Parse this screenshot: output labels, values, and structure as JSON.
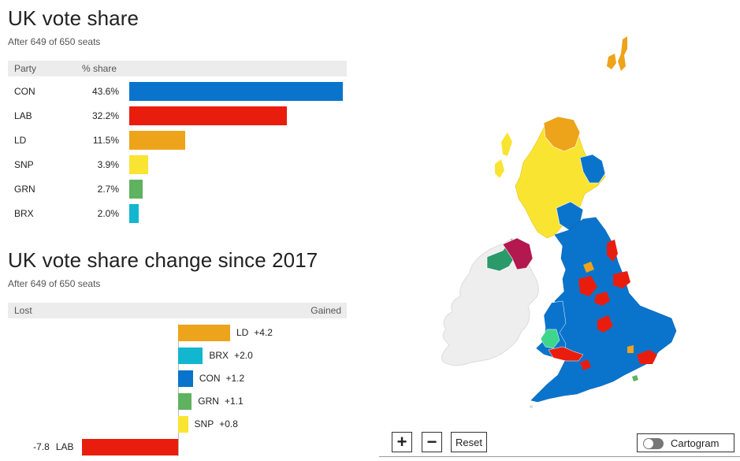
{
  "vote_share": {
    "title": "UK vote share",
    "subtitle": "After 649 of 650 seats",
    "col_party": "Party",
    "col_share": "% share"
  },
  "vote_change": {
    "title": "UK vote share change since 2017",
    "subtitle": "After 649 of 650 seats",
    "lost_label": "Lost",
    "gained_label": "Gained"
  },
  "chart_data": [
    {
      "type": "bar",
      "title": "UK vote share",
      "subtitle": "After 649 of 650 seats",
      "orientation": "horizontal",
      "categories": [
        "CON",
        "LAB",
        "LD",
        "SNP",
        "GRN",
        "BRX"
      ],
      "values": [
        43.6,
        32.2,
        11.5,
        3.9,
        2.7,
        2.0
      ],
      "value_labels": [
        "43.6%",
        "32.2%",
        "11.5%",
        "3.9%",
        "2.7%",
        "2.0%"
      ],
      "colors": [
        "#0a74cc",
        "#e91d0e",
        "#eda31a",
        "#fae432",
        "#5fb25f",
        "#12b6cf"
      ],
      "xlim": [
        0,
        43.6
      ],
      "grid": false
    },
    {
      "type": "bar",
      "title": "UK vote share change since 2017",
      "subtitle": "After 649 of 650 seats",
      "orientation": "horizontal",
      "diverging": true,
      "categories": [
        "LD",
        "BRX",
        "CON",
        "GRN",
        "SNP",
        "LAB"
      ],
      "values": [
        4.2,
        2.0,
        1.2,
        1.1,
        0.8,
        -7.8
      ],
      "value_labels": [
        "+4.2",
        "+2.0",
        "+1.2",
        "+1.1",
        "+0.8",
        "-7.8"
      ],
      "colors": [
        "#eda31a",
        "#12b6cf",
        "#0a74cc",
        "#5fb25f",
        "#fae432",
        "#e91d0e"
      ],
      "xlim": [
        -7.8,
        13.0
      ],
      "grid": false
    }
  ],
  "map": {
    "toggle_label": "Cartogram",
    "zoom_in_symbol": "+",
    "zoom_out_symbol": "−",
    "reset_label": "Reset",
    "toggle_on": false,
    "colors": {
      "con": "#0a74cc",
      "lab": "#e91d0e",
      "ld": "#eda31a",
      "snp": "#fae432",
      "grn": "#5fb25f",
      "pc": "#3dd68c",
      "dup": "#b3184e",
      "sf": "#2a9a6a",
      "ireland": "#eeeeee"
    }
  }
}
